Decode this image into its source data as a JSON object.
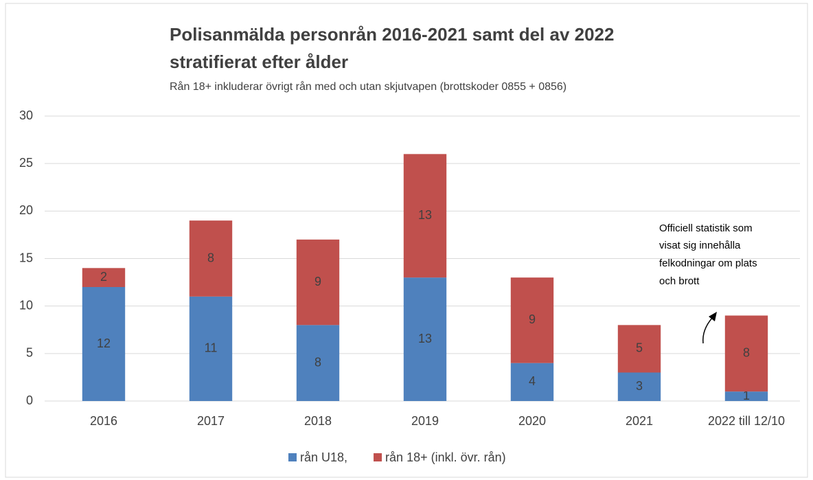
{
  "chart_data": {
    "type": "stacked_bar",
    "title": [
      "Polisanmälda personrån 2016-2021 samt del av 2022",
      "stratifierat efter ålder"
    ],
    "subtitle": "Rån 18+ inkluderar övrigt rån med och utan skjutvapen (brottskoder 0855 + 0856)",
    "annotation": [
      "Officiell statistik som",
      "visat sig innehålla",
      "felkodningar om plats",
      "och brott"
    ],
    "categories": [
      "2016",
      "2017",
      "2018",
      "2019",
      "2020",
      "2021",
      "2022 till 12/10"
    ],
    "series": [
      {
        "name": "rån U18,",
        "color": "#4f81bd",
        "values": [
          12,
          11,
          8,
          13,
          4,
          3,
          1
        ]
      },
      {
        "name": "rån 18+ (inkl. övr. rån)",
        "color": "#c0504d",
        "values": [
          2,
          8,
          9,
          13,
          9,
          5,
          8
        ]
      }
    ],
    "ylim": [
      0,
      30
    ],
    "yticks": [
      0,
      5,
      10,
      15,
      20,
      25,
      30
    ],
    "grid": true,
    "legend": "bottom"
  }
}
